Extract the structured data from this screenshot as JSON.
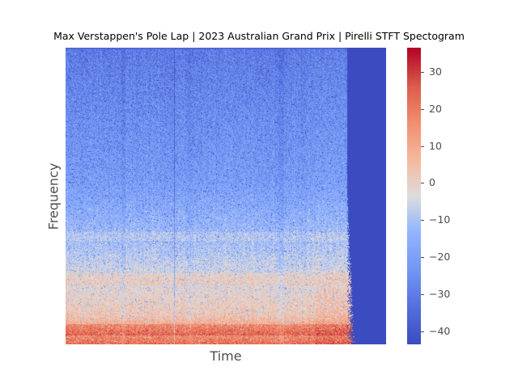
{
  "chart_data": {
    "type": "heatmap",
    "title": "Max Verstappen's Pole Lap | 2023 Australian Grand Prix | Pirelli STFT Spectogram",
    "xlabel": "Time",
    "ylabel": "Frequency",
    "colormap": "coolwarm",
    "colorbar": {
      "range": [
        -43.5,
        36.5
      ],
      "ticks": [
        30,
        20,
        10,
        0,
        -10,
        -20,
        -30,
        -40
      ],
      "tick_labels": [
        "30",
        "20",
        "10",
        "0",
        "−10",
        "−20",
        "−30",
        "−40"
      ]
    },
    "time_fraction_with_signal": 0.88,
    "value_by_frequency_band": [
      {
        "band": "low",
        "typical_value": 22
      },
      {
        "band": "low-mid",
        "typical_value": 5
      },
      {
        "band": "mid",
        "typical_value": -10
      },
      {
        "band": "high",
        "typical_value": -28
      }
    ],
    "background_value": -43.5,
    "grid": false,
    "legend": "none"
  }
}
